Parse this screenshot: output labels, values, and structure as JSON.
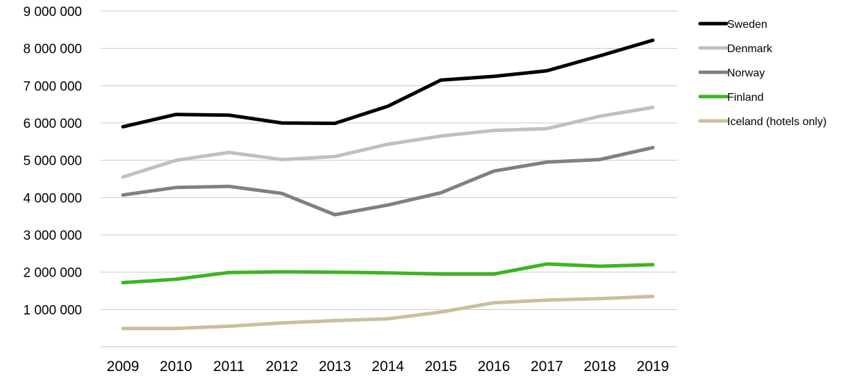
{
  "chart_data": {
    "type": "line",
    "title": "",
    "xlabel": "",
    "ylabel": "",
    "x": [
      "2009",
      "2010",
      "2011",
      "2012",
      "2013",
      "2014",
      "2015",
      "2016",
      "2017",
      "2018",
      "2019"
    ],
    "ylim": [
      0,
      9000000
    ],
    "yticks": [
      1000000,
      2000000,
      3000000,
      4000000,
      5000000,
      6000000,
      7000000,
      8000000,
      9000000
    ],
    "ytick_labels": [
      "1 000 000",
      "2 000 000",
      "3 000 000",
      "4 000 000",
      "5 000 000",
      "6 000 000",
      "7 000 000",
      "8 000 000",
      "9 000 000"
    ],
    "grid": true,
    "legend_position": "right",
    "series": [
      {
        "name": "Sweden",
        "color": "#000000",
        "values": [
          5900000,
          6230000,
          6210000,
          6000000,
          5990000,
          6450000,
          7150000,
          7250000,
          7400000,
          7800000,
          8220000
        ]
      },
      {
        "name": "Denmark",
        "color": "#c0c0c0",
        "values": [
          4550000,
          5000000,
          5210000,
          5020000,
          5100000,
          5430000,
          5650000,
          5800000,
          5850000,
          6180000,
          6420000
        ]
      },
      {
        "name": "Norway",
        "color": "#808080",
        "values": [
          4070000,
          4270000,
          4300000,
          4110000,
          3540000,
          3800000,
          4130000,
          4710000,
          4950000,
          5020000,
          5340000
        ]
      },
      {
        "name": "Finland",
        "color": "#3cb521",
        "values": [
          1720000,
          1810000,
          1990000,
          2010000,
          2000000,
          1980000,
          1950000,
          1950000,
          2220000,
          2160000,
          2200000
        ]
      },
      {
        "name": "Iceland (hotels only)",
        "color": "#c9bf9e",
        "values": [
          490000,
          490000,
          550000,
          640000,
          700000,
          750000,
          930000,
          1180000,
          1250000,
          1290000,
          1350000
        ]
      }
    ]
  }
}
